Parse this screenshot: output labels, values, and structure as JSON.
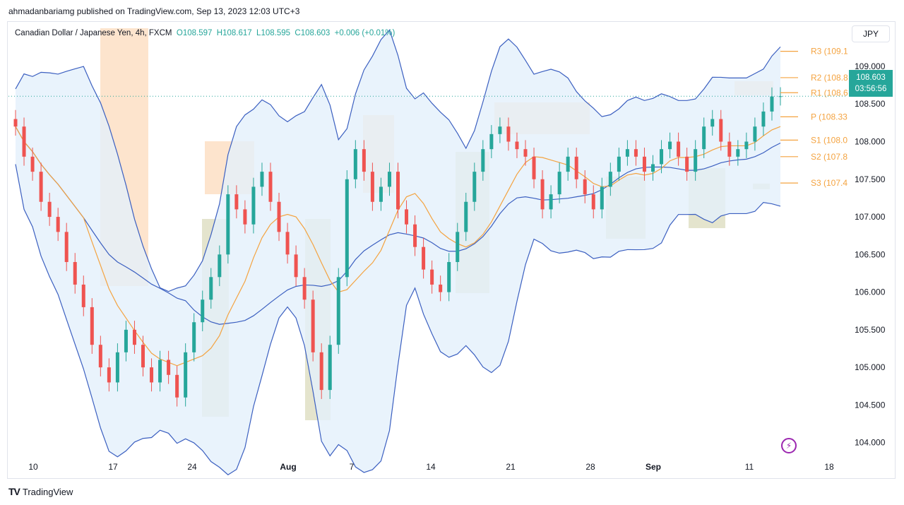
{
  "header": {
    "published_text": "ahmadanbariamg published on TradingView.com, Sep 13, 2023 12:03 UTC+3"
  },
  "legend": {
    "symbol": "Canadian Dollar / Japanese Yen, 4h, FXCM",
    "open": "O108.597",
    "high": "H108.617",
    "low": "L108.595",
    "close": "C108.603",
    "change": "+0.006 (+0.01%)"
  },
  "toolbar": {
    "currency": "JPY"
  },
  "last_price": {
    "price": "108.603",
    "countdown": "03:56:56"
  },
  "footer": {
    "brand": "TradingView"
  },
  "colors": {
    "up": "#26a69a",
    "down": "#ef5350",
    "band_line": "#3b5fc0",
    "band_fill": "#e3f0fb",
    "ma": "#f4a340",
    "pivot": "#f4a340",
    "box_orange": "#fcd9b8",
    "box_olive": "#d8d8b8"
  },
  "chart_data": {
    "type": "candlestick",
    "title": "Canadian Dollar / Japanese Yen, 4h, FXCM",
    "ylim": [
      103.8,
      109.3
    ],
    "y_ticks": [
      "104.000",
      "104.500",
      "105.000",
      "105.500",
      "106.000",
      "106.500",
      "107.000",
      "107.500",
      "108.000",
      "108.500",
      "109.000"
    ],
    "x_ticks": [
      "10",
      "17",
      "24",
      "Aug",
      "7",
      "14",
      "21",
      "28",
      "Sep",
      "11",
      "18"
    ],
    "pivots": [
      {
        "label": "R3 (109.1",
        "value": 109.2
      },
      {
        "label": "R2 (108.8",
        "value": 108.85
      },
      {
        "label": "R1 (108.6",
        "value": 108.65
      },
      {
        "label": "P (108.33",
        "value": 108.33
      },
      {
        "label": "S1 (108.0",
        "value": 108.02
      },
      {
        "label": "S2 (107.8",
        "value": 107.8
      },
      {
        "label": "S3 (107.4",
        "value": 107.45
      }
    ],
    "closes": [
      108.2,
      107.8,
      107.6,
      107.2,
      107.0,
      106.8,
      106.4,
      106.1,
      105.8,
      105.3,
      105.0,
      104.8,
      105.2,
      105.5,
      105.3,
      105.0,
      104.8,
      105.1,
      104.9,
      104.6,
      105.2,
      105.6,
      105.9,
      106.2,
      106.5,
      107.3,
      107.1,
      106.9,
      107.4,
      107.6,
      107.2,
      106.8,
      106.5,
      106.2,
      105.9,
      105.2,
      104.7,
      105.3,
      106.2,
      107.5,
      107.9,
      107.6,
      107.2,
      107.4,
      107.6,
      107.1,
      106.9,
      106.6,
      106.3,
      106.1,
      106.0,
      106.4,
      106.8,
      107.2,
      107.6,
      107.9,
      108.1,
      108.2,
      108.0,
      107.9,
      107.8,
      107.5,
      107.1,
      107.3,
      107.6,
      107.8,
      107.5,
      107.3,
      107.1,
      107.4,
      107.6,
      107.8,
      107.9,
      107.8,
      107.6,
      107.7,
      107.9,
      108.0,
      107.8,
      107.6,
      107.9,
      108.2,
      108.3,
      108.0,
      107.8,
      107.9,
      108.0,
      108.2,
      108.4,
      108.6,
      108.603
    ]
  }
}
